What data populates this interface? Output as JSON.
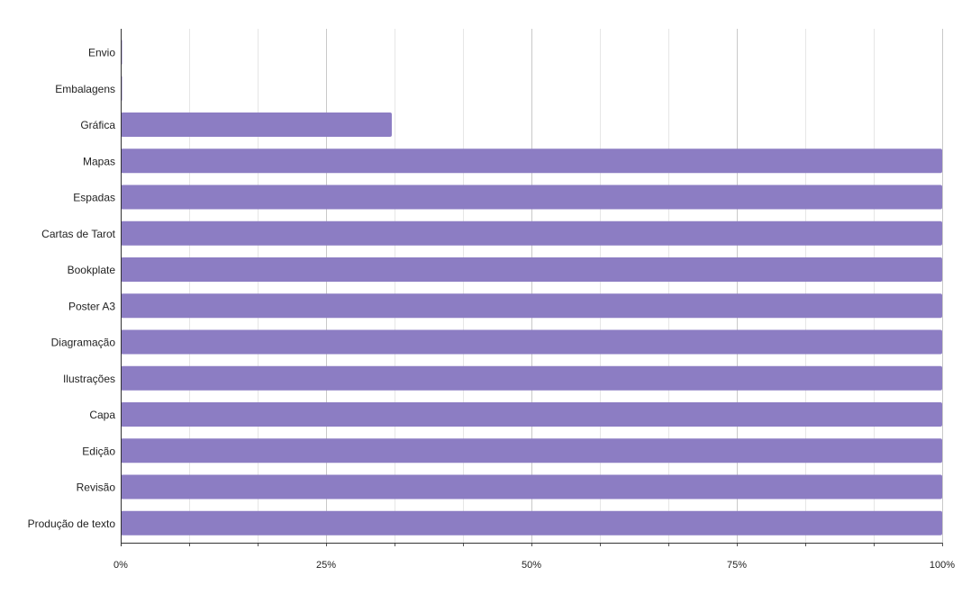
{
  "chart_data": {
    "type": "bar",
    "orientation": "horizontal",
    "categories": [
      "Envio",
      "Embalagens",
      "Gráfica",
      "Mapas",
      "Espadas",
      "Cartas de Tarot",
      "Bookplate",
      "Poster A3",
      "Diagramação",
      "Ilustrações",
      "Capa",
      "Edição",
      "Revisão",
      "Produção de texto"
    ],
    "values": [
      0,
      0,
      0.33,
      1,
      1,
      1,
      1,
      1,
      1,
      1,
      1,
      1,
      1,
      1
    ],
    "xlim": [
      0,
      1
    ],
    "x_ticks": [
      0,
      0.25,
      0.5,
      0.75,
      1
    ],
    "x_tick_labels": [
      "0%",
      "25%",
      "50%",
      "75%",
      "100%"
    ],
    "x_minor_gridlines": true,
    "grid": true,
    "legend": "none",
    "bar_color": "#8c7dc3",
    "title": "",
    "xlabel": "",
    "ylabel": ""
  }
}
